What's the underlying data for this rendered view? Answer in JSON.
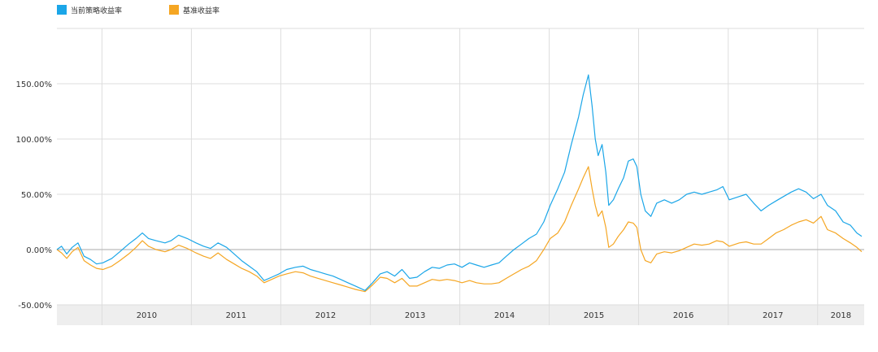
{
  "chart_data": {
    "type": "line",
    "legend_position": "top-left",
    "grid": true,
    "series": [
      {
        "name": "当前策略收益率",
        "color": "#1ba6e8",
        "points": [
          [
            "2009-07-01",
            0
          ],
          [
            "2009-07-20",
            3
          ],
          [
            "2009-08-10",
            -4
          ],
          [
            "2009-09-01",
            2
          ],
          [
            "2009-09-25",
            6
          ],
          [
            "2009-10-20",
            -6
          ],
          [
            "2009-11-15",
            -9
          ],
          [
            "2009-12-10",
            -13
          ],
          [
            "2010-01-05",
            -12
          ],
          [
            "2010-02-10",
            -8
          ],
          [
            "2010-03-15",
            -2
          ],
          [
            "2010-04-20",
            5
          ],
          [
            "2010-05-20",
            10
          ],
          [
            "2010-06-15",
            15
          ],
          [
            "2010-07-10",
            10
          ],
          [
            "2010-08-10",
            8
          ],
          [
            "2010-09-15",
            6
          ],
          [
            "2010-10-10",
            8
          ],
          [
            "2010-11-10",
            13
          ],
          [
            "2010-12-15",
            10
          ],
          [
            "2011-01-20",
            6
          ],
          [
            "2011-02-20",
            3
          ],
          [
            "2011-03-20",
            1
          ],
          [
            "2011-04-20",
            6
          ],
          [
            "2011-05-25",
            2
          ],
          [
            "2011-06-25",
            -4
          ],
          [
            "2011-07-25",
            -10
          ],
          [
            "2011-08-25",
            -15
          ],
          [
            "2011-09-25",
            -20
          ],
          [
            "2011-10-25",
            -28
          ],
          [
            "2011-11-25",
            -25
          ],
          [
            "2011-12-25",
            -22
          ],
          [
            "2012-01-25",
            -18
          ],
          [
            "2012-03-01",
            -16
          ],
          [
            "2012-04-01",
            -15
          ],
          [
            "2012-05-01",
            -18
          ],
          [
            "2012-06-01",
            -20
          ],
          [
            "2012-07-01",
            -22
          ],
          [
            "2012-08-01",
            -24
          ],
          [
            "2012-09-01",
            -27
          ],
          [
            "2012-10-01",
            -30
          ],
          [
            "2012-11-01",
            -33
          ],
          [
            "2012-12-10",
            -37
          ],
          [
            "2013-01-10",
            -30
          ],
          [
            "2013-02-10",
            -22
          ],
          [
            "2013-03-10",
            -20
          ],
          [
            "2013-04-10",
            -24
          ],
          [
            "2013-05-10",
            -18
          ],
          [
            "2013-06-10",
            -26
          ],
          [
            "2013-07-10",
            -25
          ],
          [
            "2013-08-10",
            -20
          ],
          [
            "2013-09-10",
            -16
          ],
          [
            "2013-10-10",
            -17
          ],
          [
            "2013-11-10",
            -14
          ],
          [
            "2013-12-10",
            -13
          ],
          [
            "2014-01-10",
            -16
          ],
          [
            "2014-02-10",
            -12
          ],
          [
            "2014-03-10",
            -14
          ],
          [
            "2014-04-10",
            -16
          ],
          [
            "2014-05-10",
            -14
          ],
          [
            "2014-06-10",
            -12
          ],
          [
            "2014-07-10",
            -6
          ],
          [
            "2014-08-10",
            0
          ],
          [
            "2014-09-10",
            5
          ],
          [
            "2014-10-10",
            10
          ],
          [
            "2014-11-10",
            14
          ],
          [
            "2014-12-10",
            25
          ],
          [
            "2015-01-05",
            40
          ],
          [
            "2015-02-05",
            55
          ],
          [
            "2015-03-05",
            70
          ],
          [
            "2015-04-01",
            95
          ],
          [
            "2015-05-01",
            120
          ],
          [
            "2015-05-20",
            140
          ],
          [
            "2015-06-10",
            158
          ],
          [
            "2015-06-25",
            130
          ],
          [
            "2015-07-08",
            100
          ],
          [
            "2015-07-20",
            85
          ],
          [
            "2015-08-05",
            95
          ],
          [
            "2015-08-20",
            70
          ],
          [
            "2015-09-01",
            40
          ],
          [
            "2015-09-20",
            45
          ],
          [
            "2015-10-10",
            55
          ],
          [
            "2015-11-01",
            65
          ],
          [
            "2015-11-20",
            80
          ],
          [
            "2015-12-10",
            82
          ],
          [
            "2015-12-25",
            75
          ],
          [
            "2016-01-10",
            50
          ],
          [
            "2016-01-28",
            35
          ],
          [
            "2016-02-20",
            30
          ],
          [
            "2016-03-15",
            42
          ],
          [
            "2016-04-15",
            45
          ],
          [
            "2016-05-15",
            42
          ],
          [
            "2016-06-15",
            45
          ],
          [
            "2016-07-15",
            50
          ],
          [
            "2016-08-15",
            52
          ],
          [
            "2016-09-15",
            50
          ],
          [
            "2016-10-15",
            52
          ],
          [
            "2016-11-15",
            54
          ],
          [
            "2016-12-10",
            57
          ],
          [
            "2017-01-05",
            45
          ],
          [
            "2017-02-15",
            48
          ],
          [
            "2017-03-15",
            50
          ],
          [
            "2017-04-15",
            42
          ],
          [
            "2017-05-15",
            35
          ],
          [
            "2017-06-15",
            40
          ],
          [
            "2017-07-15",
            44
          ],
          [
            "2017-08-15",
            48
          ],
          [
            "2017-09-15",
            52
          ],
          [
            "2017-10-15",
            55
          ],
          [
            "2017-11-15",
            52
          ],
          [
            "2017-12-15",
            46
          ],
          [
            "2018-01-15",
            50
          ],
          [
            "2018-02-10",
            40
          ],
          [
            "2018-03-15",
            35
          ],
          [
            "2018-04-15",
            25
          ],
          [
            "2018-05-15",
            22
          ],
          [
            "2018-06-10",
            15
          ],
          [
            "2018-06-30",
            12
          ]
        ]
      },
      {
        "name": "基准收益率",
        "color": "#f5a623",
        "points": [
          [
            "2009-07-01",
            0
          ],
          [
            "2009-07-20",
            -3
          ],
          [
            "2009-08-10",
            -8
          ],
          [
            "2009-09-01",
            -2
          ],
          [
            "2009-09-25",
            2
          ],
          [
            "2009-10-20",
            -10
          ],
          [
            "2009-11-15",
            -14
          ],
          [
            "2009-12-10",
            -17
          ],
          [
            "2010-01-05",
            -18
          ],
          [
            "2010-02-10",
            -15
          ],
          [
            "2010-03-15",
            -10
          ],
          [
            "2010-04-20",
            -4
          ],
          [
            "2010-05-20",
            2
          ],
          [
            "2010-06-15",
            8
          ],
          [
            "2010-07-10",
            3
          ],
          [
            "2010-08-10",
            0
          ],
          [
            "2010-09-15",
            -2
          ],
          [
            "2010-10-10",
            0
          ],
          [
            "2010-11-10",
            4
          ],
          [
            "2010-12-15",
            1
          ],
          [
            "2011-01-20",
            -3
          ],
          [
            "2011-02-20",
            -6
          ],
          [
            "2011-03-20",
            -8
          ],
          [
            "2011-04-20",
            -3
          ],
          [
            "2011-05-25",
            -9
          ],
          [
            "2011-06-25",
            -13
          ],
          [
            "2011-07-25",
            -17
          ],
          [
            "2011-08-25",
            -20
          ],
          [
            "2011-09-25",
            -24
          ],
          [
            "2011-10-25",
            -30
          ],
          [
            "2011-11-25",
            -27
          ],
          [
            "2011-12-25",
            -24
          ],
          [
            "2012-01-25",
            -22
          ],
          [
            "2012-03-01",
            -20
          ],
          [
            "2012-04-01",
            -21
          ],
          [
            "2012-05-01",
            -24
          ],
          [
            "2012-06-01",
            -26
          ],
          [
            "2012-07-01",
            -28
          ],
          [
            "2012-08-01",
            -30
          ],
          [
            "2012-09-01",
            -32
          ],
          [
            "2012-10-01",
            -34
          ],
          [
            "2012-11-01",
            -36
          ],
          [
            "2012-12-10",
            -38
          ],
          [
            "2013-01-10",
            -32
          ],
          [
            "2013-02-10",
            -25
          ],
          [
            "2013-03-10",
            -26
          ],
          [
            "2013-04-10",
            -30
          ],
          [
            "2013-05-10",
            -26
          ],
          [
            "2013-06-10",
            -33
          ],
          [
            "2013-07-10",
            -33
          ],
          [
            "2013-08-10",
            -30
          ],
          [
            "2013-09-10",
            -27
          ],
          [
            "2013-10-10",
            -28
          ],
          [
            "2013-11-10",
            -27
          ],
          [
            "2013-12-10",
            -28
          ],
          [
            "2014-01-10",
            -30
          ],
          [
            "2014-02-10",
            -28
          ],
          [
            "2014-03-10",
            -30
          ],
          [
            "2014-04-10",
            -31
          ],
          [
            "2014-05-10",
            -31
          ],
          [
            "2014-06-10",
            -30
          ],
          [
            "2014-07-10",
            -26
          ],
          [
            "2014-08-10",
            -22
          ],
          [
            "2014-09-10",
            -18
          ],
          [
            "2014-10-10",
            -15
          ],
          [
            "2014-11-10",
            -10
          ],
          [
            "2014-12-10",
            0
          ],
          [
            "2015-01-05",
            10
          ],
          [
            "2015-02-05",
            15
          ],
          [
            "2015-03-05",
            25
          ],
          [
            "2015-04-01",
            40
          ],
          [
            "2015-05-01",
            55
          ],
          [
            "2015-05-20",
            65
          ],
          [
            "2015-06-10",
            75
          ],
          [
            "2015-06-25",
            55
          ],
          [
            "2015-07-08",
            40
          ],
          [
            "2015-07-20",
            30
          ],
          [
            "2015-08-05",
            35
          ],
          [
            "2015-08-20",
            20
          ],
          [
            "2015-09-01",
            2
          ],
          [
            "2015-09-20",
            5
          ],
          [
            "2015-10-10",
            12
          ],
          [
            "2015-11-01",
            18
          ],
          [
            "2015-11-20",
            25
          ],
          [
            "2015-12-10",
            24
          ],
          [
            "2015-12-25",
            20
          ],
          [
            "2016-01-10",
            0
          ],
          [
            "2016-01-28",
            -10
          ],
          [
            "2016-02-20",
            -12
          ],
          [
            "2016-03-15",
            -4
          ],
          [
            "2016-04-15",
            -2
          ],
          [
            "2016-05-15",
            -3
          ],
          [
            "2016-06-15",
            -1
          ],
          [
            "2016-07-15",
            2
          ],
          [
            "2016-08-15",
            5
          ],
          [
            "2016-09-15",
            4
          ],
          [
            "2016-10-15",
            5
          ],
          [
            "2016-11-15",
            8
          ],
          [
            "2016-12-10",
            7
          ],
          [
            "2017-01-05",
            3
          ],
          [
            "2017-02-15",
            6
          ],
          [
            "2017-03-15",
            7
          ],
          [
            "2017-04-15",
            5
          ],
          [
            "2017-05-15",
            5
          ],
          [
            "2017-06-15",
            10
          ],
          [
            "2017-07-15",
            15
          ],
          [
            "2017-08-15",
            18
          ],
          [
            "2017-09-15",
            22
          ],
          [
            "2017-10-15",
            25
          ],
          [
            "2017-11-15",
            27
          ],
          [
            "2017-12-15",
            24
          ],
          [
            "2018-01-15",
            30
          ],
          [
            "2018-02-10",
            18
          ],
          [
            "2018-03-15",
            15
          ],
          [
            "2018-04-15",
            10
          ],
          [
            "2018-05-15",
            6
          ],
          [
            "2018-06-10",
            2
          ],
          [
            "2018-06-30",
            -2
          ]
        ]
      }
    ],
    "x_range": [
      "2009-07-01",
      "2018-07-10"
    ],
    "ylim": [
      -50,
      200
    ],
    "yticks": [
      -50,
      0,
      50,
      100,
      150
    ],
    "ytick_labels": [
      "-50.00%",
      "0.00%",
      "50.00%",
      "100.00%",
      "150.00%"
    ],
    "year_boundaries": [
      "2010-01-01",
      "2011-01-01",
      "2012-01-01",
      "2013-01-01",
      "2014-01-01",
      "2015-01-01",
      "2016-01-01",
      "2017-01-01",
      "2018-01-01"
    ],
    "xtick_labels": [
      {
        "label": "2010",
        "date": "2010-01-01"
      },
      {
        "label": "2011",
        "date": "2011-01-01"
      },
      {
        "label": "2012",
        "date": "2012-01-01"
      },
      {
        "label": "2013",
        "date": "2013-01-01"
      },
      {
        "label": "2014",
        "date": "2014-01-01"
      },
      {
        "label": "2015",
        "date": "2015-01-01"
      },
      {
        "label": "2016",
        "date": "2016-01-01"
      },
      {
        "label": "2017",
        "date": "2017-01-01"
      },
      {
        "label": "2018",
        "date": "2018-01-01"
      }
    ],
    "zero_line": 0,
    "colors": {
      "grid": "#dddddd",
      "zero_line": "#bbbbbb",
      "label_band": "#eeeeee",
      "text": "#333333"
    }
  }
}
